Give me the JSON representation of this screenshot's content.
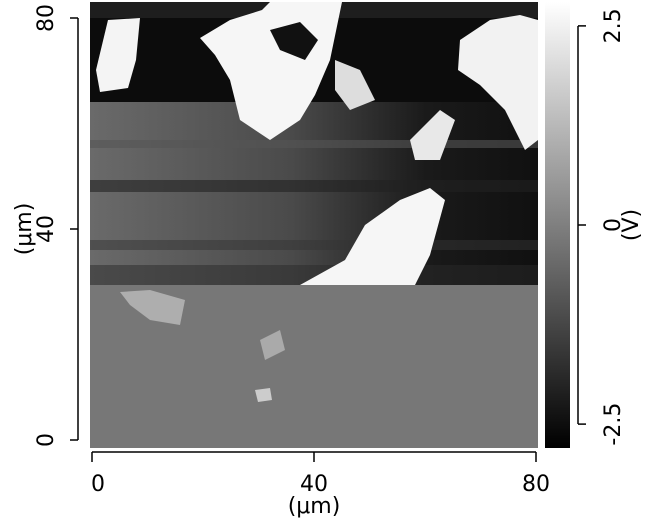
{
  "chart_data": {
    "type": "image",
    "xlabel": "(μm)",
    "ylabel": "(μm)",
    "xlim": [
      0,
      80
    ],
    "ylim": [
      0,
      80
    ],
    "xticks": [
      0,
      40,
      80
    ],
    "yticks": [
      0,
      40,
      80
    ],
    "colorbar": {
      "label": "(V)",
      "lim": [
        -2.8,
        2.8
      ],
      "ticks": [
        -2.5,
        0,
        2.5
      ],
      "colors": [
        "#000000",
        "#ffffff"
      ]
    }
  }
}
